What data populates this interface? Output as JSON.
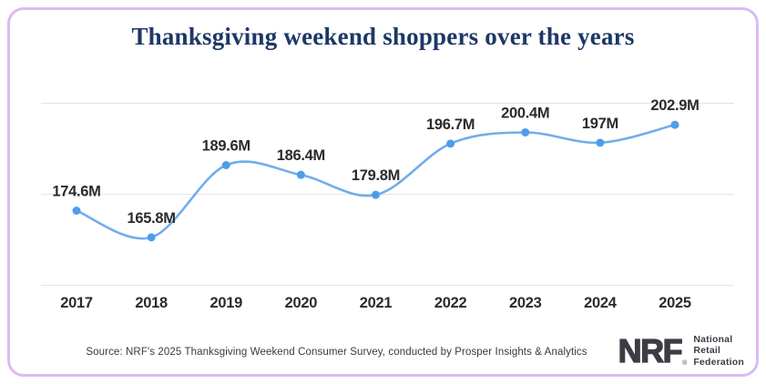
{
  "chart_data": {
    "type": "line",
    "title": "Thanksgiving weekend shoppers over the years",
    "categories": [
      "2017",
      "2018",
      "2019",
      "2020",
      "2021",
      "2022",
      "2023",
      "2024",
      "2025"
    ],
    "values": [
      174.6,
      165.8,
      189.6,
      186.4,
      179.8,
      196.7,
      200.4,
      197,
      202.9
    ],
    "point_labels": [
      "174.6M",
      "165.8M",
      "189.6M",
      "186.4M",
      "179.8M",
      "196.7M",
      "200.4M",
      "197M",
      "202.9M"
    ],
    "unit": "millions of shoppers",
    "xlabel": "",
    "ylabel": "",
    "ylim": [
      150,
      210
    ],
    "gridline_values": [
      150,
      180,
      210
    ],
    "grid": "horizontal-only, unlabeled",
    "legend": "none",
    "line_color": "#71ADEC",
    "point_color": "#4F9DE8"
  },
  "footer": {
    "source": "Source: NRF's 2025 Thanksgiving Weekend Consumer Survey, conducted by Prosper Insights & Analytics"
  },
  "logo": {
    "abbr": "NRF",
    "registered_mark": "®",
    "org_lines": [
      "National",
      "Retail",
      "Federation"
    ]
  },
  "colors": {
    "card_border": "#DCB9F4",
    "title_text": "#1D3866",
    "label_text": "#2B2B2B",
    "grid_line": "#E4E4E4",
    "trend_line": "#71ADEC",
    "data_point": "#4F9DE8",
    "logo_text": "#3F3B44"
  }
}
